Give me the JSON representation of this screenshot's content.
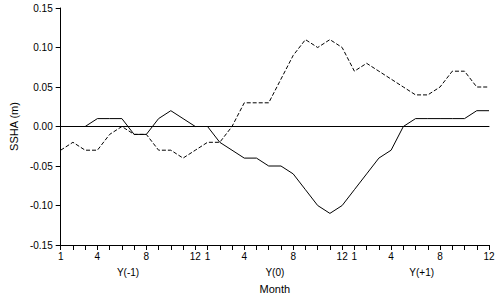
{
  "chart_data": {
    "type": "line",
    "x_label": "Month",
    "y_label": "SSHA (m)",
    "annotations": [
      "Y(-1)",
      "Y(0)",
      "Y(+1)"
    ],
    "categories": [
      "1",
      null,
      null,
      "4",
      null,
      null,
      null,
      "8",
      null,
      null,
      null,
      "12",
      "1",
      null,
      null,
      "4",
      null,
      null,
      null,
      "8",
      null,
      null,
      null,
      "12",
      "1",
      null,
      null,
      "4",
      null,
      null,
      null,
      "8",
      null,
      null,
      null,
      "12"
    ],
    "series": [
      {
        "color": "#000000",
        "line_style": "solid",
        "values": [
          0,
          0,
          0,
          0.01,
          0.01,
          0.01,
          -0.01,
          -0.01,
          0.01,
          0.02,
          0.01,
          0,
          0,
          -0.02,
          -0.03,
          -0.04,
          -0.04,
          -0.05,
          -0.05,
          -0.06,
          -0.08,
          -0.1,
          -0.11,
          -0.1,
          -0.08,
          -0.06,
          -0.04,
          -0.03,
          0,
          0.01,
          0.01,
          0.01,
          0.01,
          0.01,
          0.02,
          0.02
        ]
      },
      {
        "color": "#000000",
        "line_style": "dashed",
        "values": [
          -0.03,
          -0.02,
          -0.03,
          -0.03,
          -0.01,
          0,
          -0.01,
          -0.01,
          -0.03,
          -0.03,
          -0.04,
          -0.03,
          -0.02,
          -0.02,
          0,
          0.03,
          0.03,
          0.03,
          0.06,
          0.09,
          0.11,
          0.1,
          0.11,
          0.1,
          0.07,
          0.08,
          0.07,
          0.06,
          0.05,
          0.04,
          0.04,
          0.05,
          0.07,
          0.07,
          0.05,
          0.05
        ]
      }
    ],
    "ylim": [
      -0.15,
      0.15
    ],
    "yticks": [
      -0.15,
      {
        "value": -0.1,
        "label": "-0.10"
      },
      -0.05,
      {
        "value": 0,
        "label": "0.00"
      },
      0.05,
      {
        "value": 0.1,
        "label": "0.10"
      },
      0.15
    ],
    "grid": false
  }
}
